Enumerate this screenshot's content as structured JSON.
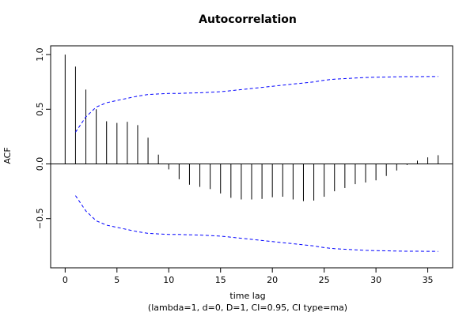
{
  "chart_data": {
    "type": "bar",
    "title": "Autocorrelation",
    "xlabel": "time lag",
    "subtitle": "(lambda=1, d=0, D=1, CI=0.95, CI type=ma)",
    "ylabel": "ACF",
    "xlim": [
      -1.4,
      37.4
    ],
    "ylim": [
      -0.95,
      1.08
    ],
    "x_ticks": [
      0,
      5,
      10,
      15,
      20,
      25,
      30,
      35
    ],
    "y_ticks": [
      -0.5,
      0.0,
      0.5,
      1.0
    ],
    "y_tick_labels": [
      "−0.5",
      "0.0",
      "0.5",
      "1.0"
    ],
    "lags": [
      0,
      1,
      2,
      3,
      4,
      5,
      6,
      7,
      8,
      9,
      10,
      11,
      12,
      13,
      14,
      15,
      16,
      17,
      18,
      19,
      20,
      21,
      22,
      23,
      24,
      25,
      26,
      27,
      28,
      29,
      30,
      31,
      32,
      33,
      34,
      35,
      36
    ],
    "acf": [
      1.0,
      0.89,
      0.68,
      0.5,
      0.39,
      0.375,
      0.385,
      0.355,
      0.24,
      0.085,
      -0.05,
      -0.14,
      -0.19,
      -0.21,
      -0.23,
      -0.27,
      -0.31,
      -0.325,
      -0.325,
      -0.32,
      -0.305,
      -0.3,
      -0.325,
      -0.34,
      -0.335,
      -0.3,
      -0.25,
      -0.22,
      -0.185,
      -0.17,
      -0.15,
      -0.11,
      -0.06,
      -0.01,
      0.03,
      0.06,
      0.08
    ],
    "ci_upper": [
      null,
      0.29,
      0.43,
      0.52,
      0.56,
      0.58,
      0.6,
      0.62,
      0.635,
      0.64,
      0.645,
      0.645,
      0.648,
      0.65,
      0.655,
      0.66,
      0.67,
      0.68,
      0.69,
      0.7,
      0.71,
      0.72,
      0.73,
      0.74,
      0.75,
      0.765,
      0.775,
      0.78,
      0.785,
      0.79,
      0.793,
      0.795,
      0.797,
      0.798,
      0.798,
      0.799,
      0.8
    ],
    "ci_color": "#0000ff",
    "bar_color": "#000000"
  }
}
